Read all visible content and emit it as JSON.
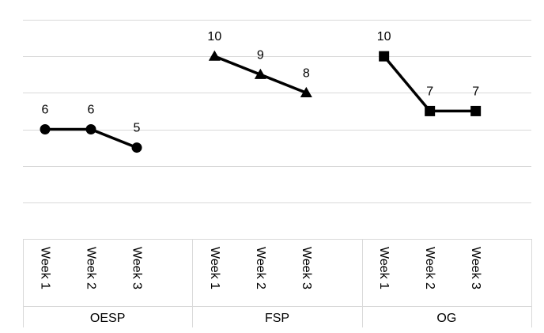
{
  "chart_data": {
    "type": "line",
    "title": "",
    "xlabel": "",
    "ylabel": "",
    "ylim": [
      0,
      12
    ],
    "grid": true,
    "legend": "none",
    "line_color": "#000000",
    "grid_color": "#d9d9d9",
    "groups": [
      {
        "name": "OESP",
        "marker": "circle",
        "categories": [
          "Week 1",
          "Week 2",
          "Week 3"
        ],
        "values": [
          6,
          6,
          5
        ]
      },
      {
        "name": "FSP",
        "marker": "triangle",
        "categories": [
          "Week 1",
          "Week 2",
          "Week 3"
        ],
        "values": [
          10,
          9,
          8
        ]
      },
      {
        "name": "OG",
        "marker": "square",
        "categories": [
          "Week 1",
          "Week 2",
          "Week 3"
        ],
        "values": [
          10,
          7,
          7
        ]
      }
    ]
  }
}
